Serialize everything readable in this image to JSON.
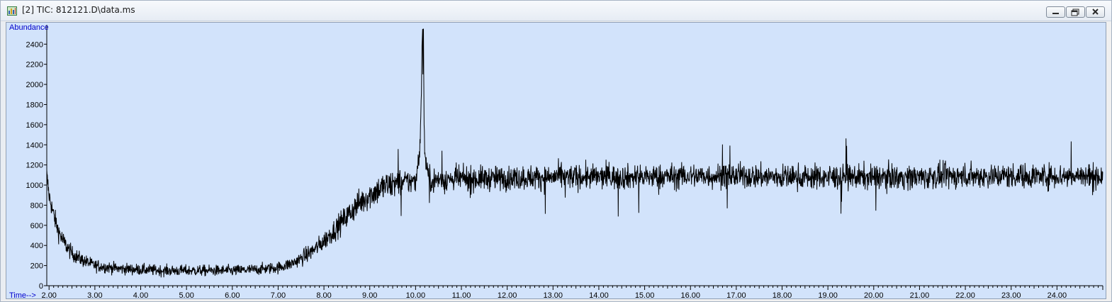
{
  "window": {
    "title": "[2] TIC: 812121.D\\data.ms",
    "icon": "chromatogram-app-icon",
    "buttons": {
      "minimize_icon": "minimize-icon",
      "maximize_icon": "maximize-icon",
      "close_icon": "close-icon"
    }
  },
  "colors": {
    "plot_background": "#d2e3fb",
    "trace": "#000000",
    "axis_title": "#0000cc"
  },
  "chart_data": {
    "type": "line",
    "ylabel": "Abundance",
    "xlabel": "Time-->",
    "xlim": [
      1.95,
      25.0
    ],
    "ylim": [
      0,
      2550
    ],
    "grid": false,
    "x_ticks": [
      2.0,
      3.0,
      4.0,
      5.0,
      6.0,
      7.0,
      8.0,
      9.0,
      10.0,
      11.0,
      12.0,
      13.0,
      14.0,
      15.0,
      16.0,
      17.0,
      18.0,
      19.0,
      20.0,
      21.0,
      22.0,
      23.0,
      24.0
    ],
    "x_tick_labels": [
      "2.00",
      "3.00",
      "4.00",
      "5.00",
      "6.00",
      "7.00",
      "8.00",
      "9.00",
      "10.00",
      "11.00",
      "12.00",
      "13.00",
      "14.00",
      "15.00",
      "16.00",
      "17.00",
      "18.00",
      "19.00",
      "20.00",
      "21.00",
      "22.00",
      "23.00",
      "24.00"
    ],
    "y_ticks": [
      0,
      200,
      400,
      600,
      800,
      1000,
      1200,
      1400,
      1600,
      1800,
      2000,
      2200,
      2400
    ],
    "y_tick_labels": [
      "0",
      "200",
      "400",
      "600",
      "800",
      "1000",
      "1200",
      "1400",
      "1600",
      "1800",
      "2000",
      "2200",
      "2400"
    ],
    "series": [
      {
        "x": [
          1.95,
          2.0,
          2.1,
          2.2,
          2.3,
          2.4,
          2.5,
          2.7,
          3.0,
          3.5,
          4.0,
          4.5,
          5.0,
          5.5,
          6.0,
          6.5,
          7.0,
          7.3,
          7.5,
          7.7,
          7.9,
          8.1,
          8.3,
          8.5,
          8.7,
          8.9,
          9.1,
          9.3,
          9.5,
          9.8,
          10.0,
          10.1,
          10.15,
          10.2,
          10.3,
          10.5,
          11.0,
          12.0,
          13.0,
          14.0,
          15.0,
          16.0,
          17.0,
          18.0,
          19.0,
          20.0,
          21.0,
          22.0,
          23.0,
          24.0,
          24.9
        ],
        "y": [
          1100,
          900,
          700,
          550,
          450,
          380,
          320,
          260,
          200,
          170,
          160,
          150,
          150,
          150,
          150,
          160,
          180,
          220,
          270,
          330,
          400,
          490,
          590,
          690,
          790,
          870,
          930,
          980,
          1010,
          1030,
          1040,
          1400,
          2550,
          1300,
          1050,
          1050,
          1060,
          1070,
          1080,
          1080,
          1080,
          1090,
          1090,
          1080,
          1080,
          1080,
          1080,
          1090,
          1090,
          1090,
          1090
        ]
      }
    ]
  }
}
